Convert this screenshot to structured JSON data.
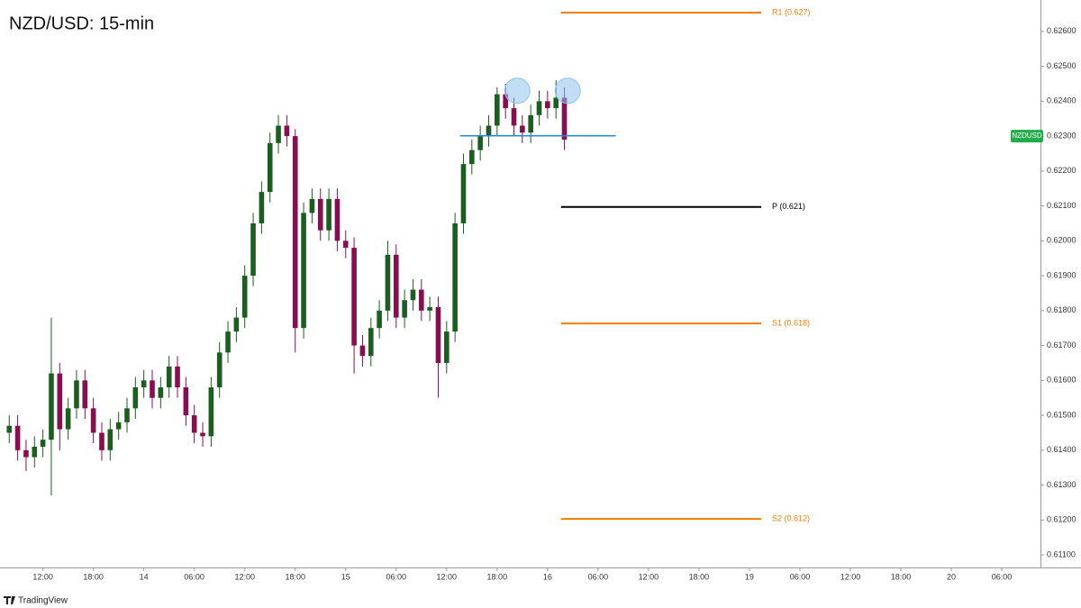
{
  "chart_data": {
    "type": "candlestick",
    "title": "NZD/USD: 15-min",
    "brand": "TradingView",
    "up_color": "#1b5e20",
    "down_color": "#880e4f",
    "xlim": [
      6.9,
      130.6
    ],
    "ylim": [
      0.61064,
      0.6269
    ],
    "xticks": [
      {
        "value": 12,
        "label": "12:00"
      },
      {
        "value": 18,
        "label": "18:00"
      },
      {
        "value": 24,
        "label": "14"
      },
      {
        "value": 30,
        "label": "06:00"
      },
      {
        "value": 36,
        "label": "12:00"
      },
      {
        "value": 42,
        "label": "18:00"
      },
      {
        "value": 48,
        "label": "15"
      },
      {
        "value": 54,
        "label": "06:00"
      },
      {
        "value": 60,
        "label": "12:00"
      },
      {
        "value": 66,
        "label": "18:00"
      },
      {
        "value": 72,
        "label": "16"
      },
      {
        "value": 78,
        "label": "06:00"
      },
      {
        "value": 84,
        "label": "12:00"
      },
      {
        "value": 90,
        "label": "18:00"
      },
      {
        "value": 96,
        "label": "19"
      },
      {
        "value": 102,
        "label": "06:00"
      },
      {
        "value": 108,
        "label": "12:00"
      },
      {
        "value": 114,
        "label": "18:00"
      },
      {
        "value": 120,
        "label": "20"
      },
      {
        "value": 126,
        "label": "06:00"
      }
    ],
    "yticks": [
      {
        "value": 0.611,
        "label": "0.61100"
      },
      {
        "value": 0.612,
        "label": "0.61200"
      },
      {
        "value": 0.613,
        "label": "0.61300"
      },
      {
        "value": 0.614,
        "label": "0.61400"
      },
      {
        "value": 0.615,
        "label": "0.61500"
      },
      {
        "value": 0.616,
        "label": "0.61600"
      },
      {
        "value": 0.617,
        "label": "0.61700"
      },
      {
        "value": 0.618,
        "label": "0.61800"
      },
      {
        "value": 0.619,
        "label": "0.61900"
      },
      {
        "value": 0.62,
        "label": "0.62000"
      },
      {
        "value": 0.621,
        "label": "0.62100"
      },
      {
        "value": 0.622,
        "label": "0.62200"
      },
      {
        "value": 0.623,
        "label": "0.62300"
      },
      {
        "value": 0.624,
        "label": "0.62400"
      },
      {
        "value": 0.625,
        "label": "0.62500"
      },
      {
        "value": 0.626,
        "label": "0.62600"
      }
    ],
    "x": [
      8,
      9,
      10,
      11,
      12,
      13,
      14,
      15,
      16,
      17,
      18,
      19,
      20,
      21,
      22,
      23,
      24,
      25,
      26,
      27,
      28,
      29,
      30,
      31,
      32,
      33,
      34,
      35,
      36,
      37,
      38,
      39,
      40,
      41,
      42,
      43,
      44,
      45,
      46,
      47,
      48,
      49,
      50,
      51,
      52,
      53,
      54,
      55,
      56,
      57,
      58,
      59,
      60,
      61,
      62,
      63,
      64,
      65,
      66,
      67,
      68,
      69,
      70,
      71,
      72,
      73,
      74
    ],
    "open": [
      0.6145,
      0.6147,
      0.614,
      0.6138,
      0.6141,
      0.6143,
      0.6162,
      0.6146,
      0.6152,
      0.616,
      0.6152,
      0.6145,
      0.614,
      0.6146,
      0.6148,
      0.6152,
      0.6158,
      0.616,
      0.6155,
      0.6158,
      0.6164,
      0.6158,
      0.615,
      0.6145,
      0.6144,
      0.6158,
      0.6168,
      0.6174,
      0.6178,
      0.619,
      0.6205,
      0.6214,
      0.6228,
      0.6233,
      0.623,
      0.6175,
      0.6208,
      0.6212,
      0.6203,
      0.6212,
      0.62,
      0.6198,
      0.617,
      0.6167,
      0.6175,
      0.618,
      0.6196,
      0.6178,
      0.6183,
      0.6186,
      0.618,
      0.6181,
      0.6165,
      0.6174,
      0.6205,
      0.6222,
      0.6226,
      0.623,
      0.6233,
      0.6242,
      0.6238,
      0.6233,
      0.6231,
      0.6236,
      0.624,
      0.6238,
      0.6241
    ],
    "high": [
      0.615,
      0.615,
      0.6143,
      0.6144,
      0.6146,
      0.6178,
      0.6165,
      0.6155,
      0.6163,
      0.6163,
      0.6155,
      0.6148,
      0.6149,
      0.6151,
      0.6155,
      0.6161,
      0.6163,
      0.6163,
      0.6161,
      0.6167,
      0.6167,
      0.6161,
      0.6153,
      0.6148,
      0.6161,
      0.6171,
      0.6177,
      0.6181,
      0.6193,
      0.6208,
      0.6217,
      0.6231,
      0.6236,
      0.6236,
      0.6232,
      0.6211,
      0.6215,
      0.6215,
      0.6215,
      0.6215,
      0.6203,
      0.6201,
      0.6173,
      0.6178,
      0.6183,
      0.62,
      0.6199,
      0.6186,
      0.6189,
      0.6189,
      0.6184,
      0.6184,
      0.6177,
      0.6208,
      0.6225,
      0.6229,
      0.6233,
      0.6236,
      0.6244,
      0.6245,
      0.6241,
      0.6236,
      0.6239,
      0.6243,
      0.6243,
      0.6246,
      0.6244
    ],
    "low": [
      0.6142,
      0.6137,
      0.6134,
      0.6135,
      0.6138,
      0.6127,
      0.614,
      0.6143,
      0.6149,
      0.6149,
      0.6142,
      0.6137,
      0.6137,
      0.6143,
      0.6145,
      0.6149,
      0.6155,
      0.6152,
      0.6152,
      0.6155,
      0.6155,
      0.6147,
      0.6142,
      0.6141,
      0.6141,
      0.6155,
      0.6165,
      0.6171,
      0.6175,
      0.6187,
      0.6202,
      0.6211,
      0.6225,
      0.6227,
      0.6168,
      0.6172,
      0.6205,
      0.62,
      0.62,
      0.6197,
      0.6195,
      0.6162,
      0.6164,
      0.6164,
      0.6172,
      0.6177,
      0.6175,
      0.6175,
      0.618,
      0.6177,
      0.6177,
      0.6155,
      0.6162,
      0.6171,
      0.6202,
      0.6219,
      0.6223,
      0.6227,
      0.623,
      0.6235,
      0.623,
      0.6228,
      0.6228,
      0.6233,
      0.6235,
      0.6235,
      0.6226
    ],
    "close": [
      0.6147,
      0.614,
      0.6138,
      0.6141,
      0.6143,
      0.6162,
      0.6146,
      0.6152,
      0.616,
      0.6152,
      0.6145,
      0.614,
      0.6146,
      0.6148,
      0.6152,
      0.6158,
      0.616,
      0.6155,
      0.6158,
      0.6164,
      0.6158,
      0.615,
      0.6145,
      0.6144,
      0.6158,
      0.6168,
      0.6174,
      0.6178,
      0.619,
      0.6205,
      0.6214,
      0.6228,
      0.6233,
      0.623,
      0.6175,
      0.6208,
      0.6212,
      0.6203,
      0.6212,
      0.62,
      0.6198,
      0.617,
      0.6167,
      0.6175,
      0.618,
      0.6196,
      0.6178,
      0.6183,
      0.6186,
      0.618,
      0.6181,
      0.6165,
      0.6174,
      0.6205,
      0.6222,
      0.6226,
      0.623,
      0.6233,
      0.6242,
      0.6238,
      0.6233,
      0.6231,
      0.6236,
      0.624,
      0.6238,
      0.6241,
      0.6229
    ],
    "levels": [
      {
        "label": "R1 (0.627)",
        "value": 0.62654,
        "x": [
          73.6,
          97.4
        ],
        "color": "#f57c00"
      },
      {
        "label": "P (0.621)",
        "value": 0.62097,
        "x": [
          73.6,
          97.4
        ],
        "color": "#000000"
      },
      {
        "label": "S1 (0.618)",
        "value": 0.61763,
        "x": [
          73.6,
          97.4
        ],
        "color": "#f57c00"
      },
      {
        "label": "S2 (0.612)",
        "value": 0.61203,
        "x": [
          73.6,
          97.4
        ],
        "color": "#f57c00"
      }
    ],
    "neckline": {
      "value": 0.62301,
      "x": [
        61.6,
        80.1
      ],
      "color": "#1e88e5"
    },
    "highlights": [
      {
        "x": 68.4,
        "value": 0.6243
      },
      {
        "x": 74.4,
        "value": 0.6243
      }
    ],
    "highlight_color": "#90c2ec",
    "price_tag": {
      "text": "NZDUSD",
      "value": 0.623,
      "color": "#22ab4a"
    }
  }
}
